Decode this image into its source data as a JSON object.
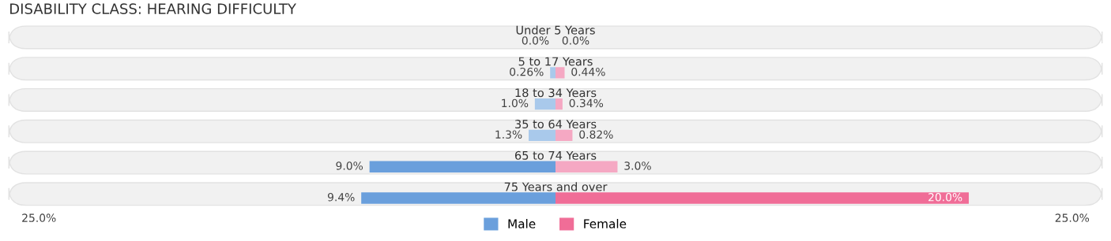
{
  "chart_data": {
    "type": "bar",
    "orientation": "horizontal",
    "title": "DISABILITY CLASS: HEARING DIFFICULTY",
    "categories": [
      "Under 5 Years",
      "5 to 17 Years",
      "18 to 34 Years",
      "35 to 64 Years",
      "65 to 74 Years",
      "75 Years and over"
    ],
    "series": [
      {
        "name": "Male",
        "color": "#6a9fdc",
        "values": [
          0.0,
          0.26,
          1.0,
          1.3,
          9.0,
          9.4
        ],
        "base": [
          null,
          -0.26,
          -1.0,
          -1.3,
          -9.0,
          -9.4
        ],
        "colors": [
          "#a9c9eb",
          "#a9c9eb",
          "#a9c9eb",
          "#a9c9eb",
          "#6a9fdc",
          "#6a9fdc"
        ],
        "value_labels": [
          "0.0%",
          "0.26%",
          "1.0%",
          "1.3%",
          "9.0%",
          "9.4%"
        ]
      },
      {
        "name": "Female",
        "color": "#f06d97",
        "values": [
          0.0,
          0.44,
          0.34,
          0.82,
          3.0,
          20.0
        ],
        "colors": [
          "#f5a8c3",
          "#f5a8c3",
          "#f5a8c3",
          "#f5a8c3",
          "#f5a8c3",
          "#f06d97"
        ],
        "value_labels": [
          "0.0%",
          "0.44%",
          "0.34%",
          "0.82%",
          "3.0%",
          "20.0%"
        ]
      }
    ],
    "xlim": [
      -25,
      25
    ],
    "xticks": [
      {
        "value": -25,
        "label": "25.0%"
      },
      {
        "value": 25,
        "label": "25.0%"
      }
    ],
    "legend": "bottom",
    "grid": false
  }
}
